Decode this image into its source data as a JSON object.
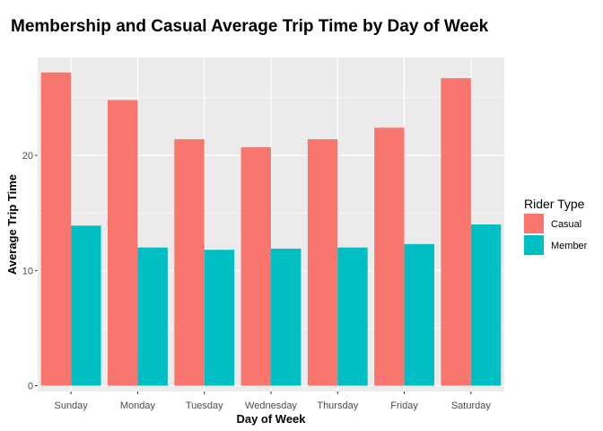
{
  "chart_data": {
    "type": "bar",
    "title": "Membership and Casual Average Trip Time by Day of Week",
    "xlabel": "Day of Week",
    "ylabel": "Average Trip Time",
    "categories": [
      "Sunday",
      "Monday",
      "Tuesday",
      "Wednesday",
      "Thursday",
      "Friday",
      "Saturday"
    ],
    "series": [
      {
        "name": "Casual",
        "color": "#F8766D",
        "values": [
          27.2,
          24.8,
          21.4,
          20.7,
          21.4,
          22.4,
          26.7
        ]
      },
      {
        "name": "Member",
        "color": "#00BFC4",
        "values": [
          13.9,
          12.0,
          11.8,
          11.9,
          12.0,
          12.3,
          14.0
        ]
      }
    ],
    "ylim": [
      -0.5,
      28.5
    ],
    "yticks": [
      0,
      10,
      20
    ],
    "grid": true,
    "legend": {
      "title": "Rider Type",
      "position": "right"
    },
    "colors": {
      "panel_background": "#EBEBEB",
      "grid": "#FFFFFF"
    }
  }
}
